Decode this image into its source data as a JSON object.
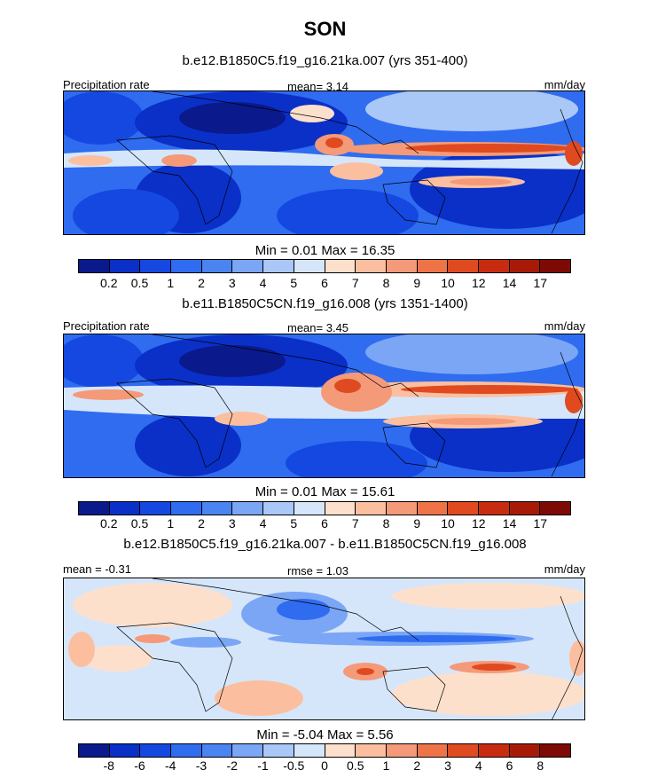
{
  "title": "SON",
  "panels": [
    {
      "subtitle": "b.e12.B1850C5.f19_g16.21ka.007 (yrs 351-400)",
      "left_label": "Precipitation rate",
      "center_label": "mean=   3.14",
      "right_label": "mm/day",
      "minmax": "Min =   0.01 Max =  16.35"
    },
    {
      "subtitle": "b.e11.B1850C5CN.f19_g16.008 (yrs 1351-1400)",
      "left_label": "Precipitation rate",
      "center_label": "mean=   3.45",
      "right_label": "mm/day",
      "minmax": "Min =   0.01 Max =  15.61"
    },
    {
      "subtitle": "b.e12.B1850C5.f19_g16.21ka.007 - b.e11.B1850C5CN.f19_g16.008",
      "left_label": "mean =  -0.31",
      "center_label": "rmse =   1.03",
      "right_label": "mm/day",
      "minmax": "Min =  -5.04 Max =   5.56"
    }
  ],
  "colorbars": {
    "precip": {
      "colors": [
        "#0a1a8c",
        "#0a30c8",
        "#1548e0",
        "#2f6cf0",
        "#4a84f0",
        "#7aa6f5",
        "#a9c7f7",
        "#d6e6fa",
        "#fde0cc",
        "#fbbfa0",
        "#f49a78",
        "#ee7448",
        "#e04a20",
        "#c82c10",
        "#a81a08",
        "#7d0a05"
      ],
      "ticks": [
        "0.2",
        "0.5",
        "1",
        "2",
        "3",
        "4",
        "5",
        "6",
        "7",
        "8",
        "9",
        "10",
        "12",
        "14",
        "17"
      ]
    },
    "diff": {
      "colors": [
        "#0a1a8c",
        "#0a30c8",
        "#1548e0",
        "#2f6cf0",
        "#4a84f0",
        "#7aa6f5",
        "#a9c7f7",
        "#d6e6fa",
        "#fde0cc",
        "#fbbfa0",
        "#f49a78",
        "#ee7448",
        "#e04a20",
        "#c82c10",
        "#a81a08",
        "#7d0a05"
      ],
      "ticks": [
        "-8",
        "-6",
        "-4",
        "-3",
        "-2",
        "-1",
        "-0.5",
        "0",
        "0.5",
        "1",
        "2",
        "3",
        "4",
        "6",
        "8"
      ]
    }
  }
}
